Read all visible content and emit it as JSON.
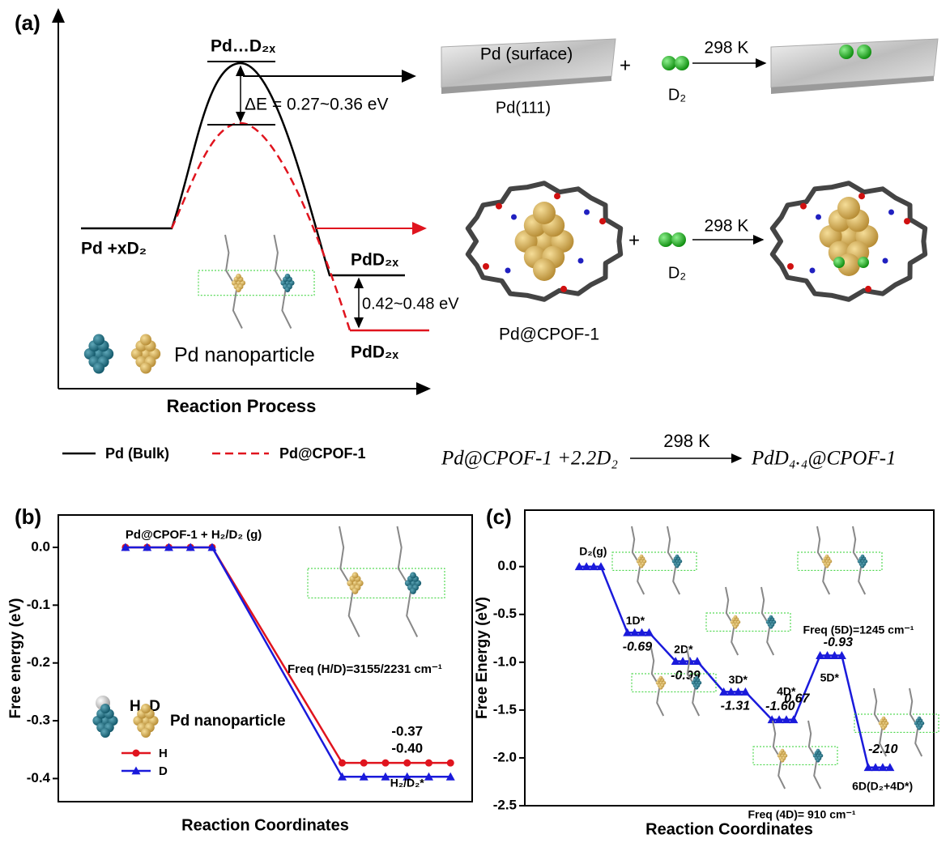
{
  "panel_a": {
    "label": "(a)",
    "ts_label": "Pd…D₂ₓ",
    "delta_e": "ΔE = 0.27~0.36 eV",
    "reactant": "Pd +xD₂",
    "product_bulk": "PdD₂ₓ",
    "product_cpof": "PdD₂ₓ",
    "delta_product": "0.42~0.48 eV",
    "nanoparticle": "Pd nanoparticle",
    "xlabel": "Reaction Process",
    "surface": "Pd (surface)",
    "plus": "+",
    "d2": "D₂",
    "temp": "298 K",
    "surface_name": "Pd(111)",
    "cpof_name": "Pd@CPOF-1",
    "legend": [
      "Pd (Bulk)",
      "Pd@CPOF-1"
    ],
    "equation": {
      "left": "Pd@CPOF-1 +2.2D₂",
      "temp": "298 K",
      "right": "PdD₄.₄@CPOF-1"
    }
  },
  "chart_data": [
    {
      "type": "line",
      "label": "(b)",
      "ylabel": "Free energy (eV)",
      "xlabel": "Reaction Coordinates",
      "x": [
        1,
        2,
        3,
        4,
        5,
        11,
        12,
        13,
        14,
        15,
        16
      ],
      "xlim": [
        -2.1,
        17
      ],
      "ylim": [
        -0.44,
        0.056
      ],
      "yticks": [
        {
          "value": 0,
          "label": "0.0"
        },
        -0.1,
        -0.2,
        -0.3,
        -0.4
      ],
      "legend": true,
      "series": [
        {
          "name": "H",
          "color": "#e0141e",
          "marker": "circle",
          "values": [
            0,
            0,
            0,
            0,
            0,
            -0.373,
            -0.373,
            -0.373,
            -0.373,
            -0.373,
            -0.373
          ]
        },
        {
          "name": "D",
          "color": "#1a1adb",
          "marker": "triangle",
          "values": [
            0,
            0,
            0,
            0,
            0,
            -0.397,
            -0.397,
            -0.397,
            -0.397,
            -0.397,
            -0.397
          ]
        }
      ],
      "end_labels": [
        "-0.37",
        "-0.40"
      ],
      "start_label": "Pd@CPOF-1 + H₂/D₂ (g)",
      "end_state": "H₂/D₂*",
      "freq": "Freq (H/D)=3155/2231 cm⁻¹",
      "atom_legend": "H, D",
      "nanoparticle": "Pd nanoparticle"
    },
    {
      "type": "line",
      "label": "(c)",
      "ylabel": "Free Energy (eV)",
      "xlabel": "Reaction Coordinates",
      "x": [
        0,
        0.15,
        0.3,
        0.45,
        1,
        1.15,
        1.3,
        1.45,
        2,
        2.15,
        2.3,
        2.45,
        3,
        3.15,
        3.3,
        3.45,
        4,
        4.15,
        4.3,
        4.45,
        5,
        5.15,
        5.3,
        5.45,
        6,
        6.15,
        6.3,
        6.45
      ],
      "xlim": [
        -1.13,
        7.36
      ],
      "ylim": [
        -2.5,
        0.59
      ],
      "yticks": [
        {
          "value": 0,
          "label": "0.0"
        },
        -0.5,
        {
          "value": -1,
          "label": "-1.0"
        },
        -1.5,
        {
          "value": -2,
          "label": "-2.0"
        },
        -2.5
      ],
      "legend": false,
      "series": [
        {
          "color": "#1a1adb",
          "marker": "triangle",
          "values": [
            0,
            0,
            0,
            0,
            -0.69,
            -0.69,
            -0.69,
            -0.69,
            -0.99,
            -0.99,
            -0.99,
            -0.99,
            -1.31,
            -1.31,
            -1.31,
            -1.31,
            -1.6,
            -1.6,
            -1.6,
            -1.6,
            -0.93,
            -0.93,
            -0.93,
            -0.93,
            -2.1,
            -2.1,
            -2.1,
            -2.1
          ]
        }
      ],
      "state_labels": [
        "D₂(g)",
        "1D*",
        "2D*",
        "3D*",
        "4D*",
        "5D*",
        "6D(D₂+4D*)"
      ],
      "energy_labels": [
        null,
        "-0.69",
        "-0.99",
        "-1.31",
        "-1.60",
        "-0.93",
        "-2.10"
      ],
      "barrier_label": "0.67",
      "freq_5d": "Freq (5D)=1245 cm⁻¹",
      "freq_4d": "Freq (4D)= 910 cm⁻¹"
    }
  ]
}
